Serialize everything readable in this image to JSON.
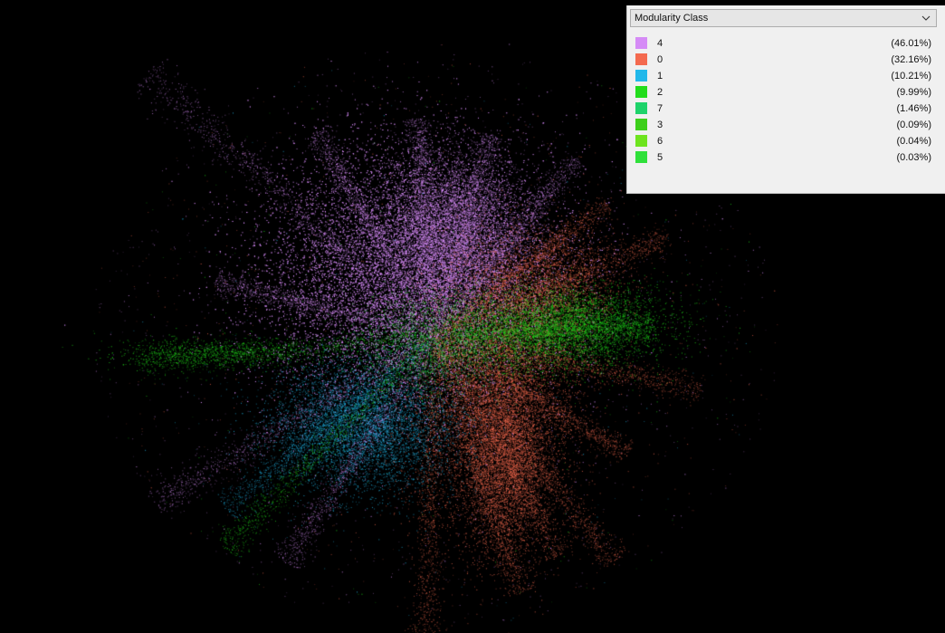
{
  "partition": {
    "selected": "Modularity Class",
    "icon": "chevron-down-icon"
  },
  "legend": [
    {
      "label": "4",
      "percent": "(46.01%)",
      "share": 46.01,
      "color": "#d58bf6"
    },
    {
      "label": "0",
      "percent": "(32.16%)",
      "share": 32.16,
      "color": "#f46a4f"
    },
    {
      "label": "1",
      "percent": "(10.21%)",
      "share": 10.21,
      "color": "#22b8ea"
    },
    {
      "label": "2",
      "percent": "(9.99%)",
      "share": 9.99,
      "color": "#22dd1c"
    },
    {
      "label": "7",
      "percent": "(1.46%)",
      "share": 1.46,
      "color": "#1ed36a"
    },
    {
      "label": "3",
      "percent": "(0.09%)",
      "share": 0.09,
      "color": "#3ccf1a"
    },
    {
      "label": "6",
      "percent": "(0.04%)",
      "share": 0.04,
      "color": "#6ee41e"
    },
    {
      "label": "5",
      "percent": "(0.03%)",
      "share": 0.03,
      "color": "#2fe03a"
    }
  ],
  "graph": {
    "background": "#000000"
  }
}
